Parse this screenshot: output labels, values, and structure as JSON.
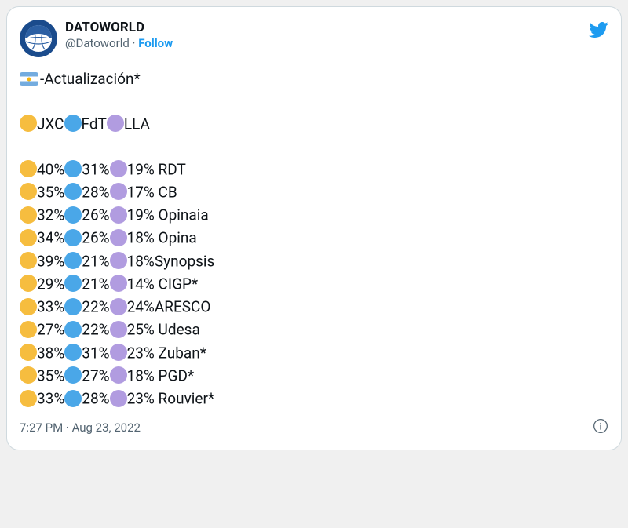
{
  "account": {
    "display_name": "DATOWORLD",
    "handle": "@Datoworld",
    "follow_label": "Follow"
  },
  "tweet": {
    "headline_suffix": "-Actualización*",
    "timestamp": "7:27 PM · Aug 23, 2022"
  },
  "legend": {
    "items": [
      {
        "label": "JXC",
        "color": "#f6bd3f"
      },
      {
        "label": "FdT",
        "color": "#4aa7e8"
      },
      {
        "label": "LLA",
        "color": "#b19ce0"
      }
    ]
  },
  "polls": [
    {
      "jxc": "40%",
      "fdt": "31%",
      "lla": "19%",
      "source": " RDT"
    },
    {
      "jxc": "35%",
      "fdt": "28%",
      "lla": "17%",
      "source": " CB"
    },
    {
      "jxc": "32%",
      "fdt": "26%",
      "lla": "19%",
      "source": " Opinaia"
    },
    {
      "jxc": "34%",
      "fdt": "26%",
      "lla": "18%",
      "source": " Opina"
    },
    {
      "jxc": "39%",
      "fdt": "21%",
      "lla": "18%",
      "source": "Synopsis"
    },
    {
      "jxc": "29%",
      "fdt": "21%",
      "lla": "14%",
      "source": " CIGP*"
    },
    {
      "jxc": "33%",
      "fdt": "22%",
      "lla": "24%",
      "source": "ARESCO"
    },
    {
      "jxc": "27%",
      "fdt": "22%",
      "lla": "25%",
      "source": " Udesa"
    },
    {
      "jxc": "38%",
      "fdt": "31%",
      "lla": "23%",
      "source": " Zuban*"
    },
    {
      "jxc": "35%",
      "fdt": "27%",
      "lla": "18%",
      "source": " PGD*"
    },
    {
      "jxc": "33%",
      "fdt": "28%",
      "lla": "23%",
      "source": " Rouvier*"
    }
  ],
  "colors": {
    "jxc": "#f6bd3f",
    "fdt": "#4aa7e8",
    "lla": "#b19ce0"
  }
}
